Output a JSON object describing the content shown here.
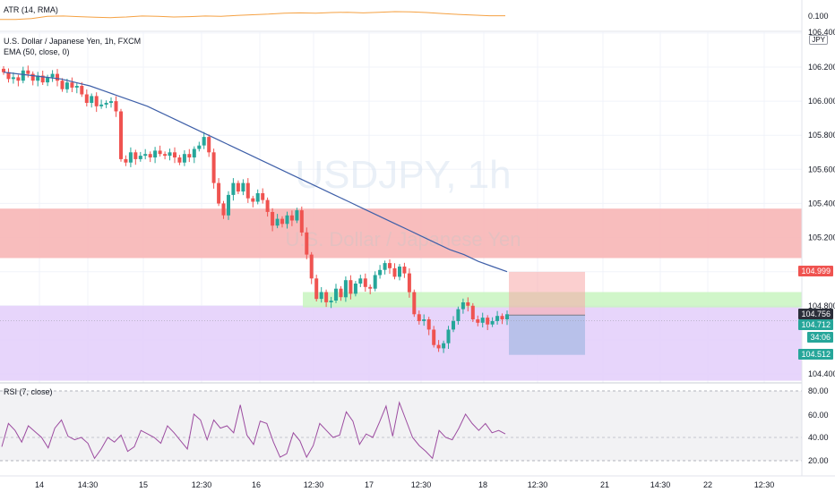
{
  "header": {
    "symbol_title": "U.S. Dollar / Japanese Yen, 1h, FXCM",
    "ema_label": "EMA (50, close, 0)",
    "atr_label": "ATR (14, RMA)",
    "rsi_label": "RSI (7, close)",
    "currency_button": "JPY"
  },
  "watermark": {
    "symbol": "USDJPY, 1h",
    "name": "U.S. Dollar / Japanese Yen"
  },
  "price_axis": {
    "ticks": [
      "106.200",
      "106.000",
      "105.800",
      "105.600",
      "105.400",
      "105.200",
      "104.800",
      "104.400"
    ],
    "atr_ticks": [
      "0.100",
      "106.400"
    ],
    "rsi_ticks": [
      "80.00",
      "60.00",
      "40.00",
      "20.00"
    ]
  },
  "badges": {
    "level_red": "104.999",
    "last_price": "104.756",
    "price_2": "104.712",
    "countdown": "34:06",
    "level_green": "104.512"
  },
  "time_axis": [
    "14",
    "14:30",
    "15",
    "12:30",
    "16",
    "12:30",
    "17",
    "12:30",
    "18",
    "12:30",
    "21",
    "14:30",
    "22",
    "12:30"
  ],
  "colors": {
    "up": "#26a69a",
    "down": "#ef5350",
    "ema": "#3e5fa8",
    "atr": "#f5a142",
    "rsi": "#9c4ca0",
    "red_zone": "#f7b6b6",
    "green_zone": "#c8f5c0",
    "purple_zone": "#e4d0fb"
  },
  "chart_data": {
    "type": "candlestick",
    "title": "U.S. Dollar / Japanese Yen, 1h, FXCM",
    "ylim": [
      104.3,
      106.45
    ],
    "zones": [
      {
        "name": "red-supply-zone",
        "from": 105.08,
        "to": 105.37
      },
      {
        "name": "green-zone",
        "from": 104.79,
        "to": 104.88
      },
      {
        "name": "purple-demand-zone",
        "from": 104.36,
        "to": 104.8
      }
    ],
    "position": {
      "entry": 104.745,
      "stop": 104.999,
      "target": 104.512
    },
    "close_series": [
      106.17,
      106.13,
      106.14,
      106.12,
      106.18,
      106.16,
      106.12,
      106.15,
      106.11,
      106.14,
      106.16,
      106.12,
      106.07,
      106.11,
      106.08,
      106.09,
      106.04,
      105.99,
      106.03,
      105.97,
      105.98,
      105.99,
      106.0,
      105.94,
      105.66,
      105.64,
      105.7,
      105.66,
      105.68,
      105.69,
      105.67,
      105.71,
      105.69,
      105.68,
      105.7,
      105.67,
      105.64,
      105.69,
      105.67,
      105.72,
      105.74,
      105.79,
      105.7,
      105.52,
      105.4,
      105.33,
      105.45,
      105.52,
      105.47,
      105.52,
      105.43,
      105.41,
      105.46,
      105.42,
      105.35,
      105.27,
      105.31,
      105.28,
      105.33,
      105.3,
      105.36,
      105.23,
      105.1,
      104.96,
      104.84,
      104.88,
      104.82,
      104.83,
      104.9,
      104.85,
      104.95,
      104.87,
      104.93,
      104.96,
      104.91,
      104.9,
      104.98,
      105.01,
      105.05,
      105.02,
      104.97,
      105.03,
      104.99,
      104.88,
      104.75,
      104.71,
      104.72,
      104.66,
      104.57,
      104.55,
      104.58,
      104.66,
      104.71,
      104.78,
      104.82,
      104.8,
      104.72,
      104.7,
      104.73,
      104.69,
      104.71,
      104.74,
      104.72,
      104.75
    ],
    "ema_series": [
      106.17,
      106.16,
      106.15,
      106.14,
      106.13,
      106.11,
      106.09,
      106.06,
      106.03,
      106.0,
      105.97,
      105.93,
      105.89,
      105.85,
      105.81,
      105.77,
      105.73,
      105.69,
      105.65,
      105.61,
      105.57,
      105.53,
      105.49,
      105.45,
      105.41,
      105.37,
      105.33,
      105.29,
      105.25,
      105.21,
      105.17,
      105.13,
      105.1,
      105.06,
      105.03,
      105.0
    ],
    "atr_series": [
      0.115,
      0.115,
      0.118,
      0.125,
      0.126,
      0.124,
      0.122,
      0.121,
      0.123,
      0.126,
      0.125,
      0.123,
      0.124,
      0.126,
      0.125,
      0.128,
      0.13,
      0.132,
      0.135,
      0.136,
      0.135,
      0.137,
      0.138,
      0.136,
      0.138,
      0.14,
      0.139,
      0.137,
      0.134,
      0.131,
      0.129,
      0.127,
      0.127
    ],
    "rsi_series": [
      32,
      52,
      46,
      36,
      50,
      45,
      40,
      31,
      48,
      55,
      41,
      38,
      40,
      35,
      22,
      30,
      40,
      36,
      42,
      28,
      32,
      46,
      43,
      40,
      35,
      50,
      44,
      37,
      30,
      60,
      55,
      38,
      55,
      48,
      50,
      44,
      68,
      42,
      34,
      54,
      52,
      36,
      23,
      26,
      44,
      37,
      23,
      33,
      52,
      46,
      40,
      42,
      62,
      54,
      34,
      43,
      40,
      53,
      67,
      41,
      70,
      55,
      40,
      33,
      28,
      22,
      46,
      40,
      38,
      48,
      60,
      52,
      46,
      52,
      44,
      46,
      43
    ],
    "ylabel": "",
    "xlabel": ""
  }
}
